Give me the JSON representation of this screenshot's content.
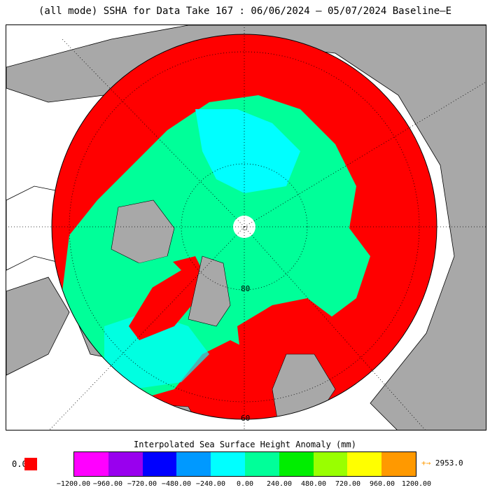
{
  "title": "(all mode) SSHA for Data Take 167 : 06/06/2024 — 05/07/2024 Baseline—E",
  "map": {
    "lat_labels": [
      "80",
      "60"
    ],
    "pole_marker": "□",
    "colors": {
      "land": "#a8a8a8",
      "ocean_outside": "#ffffff",
      "valid_data_red": "#ff0000",
      "sea_ice_dominant": "#00ff99",
      "pole_gap": "#ffffff"
    }
  },
  "colorbar": {
    "title": "Interpolated Sea Surface Height Anomaly (mm)",
    "tick_labels": [
      "−1200.00",
      "−960.00",
      "−720.00",
      "−480.00",
      "−240.00",
      "0.00",
      "240.00",
      "480.00",
      "720.00",
      "960.00",
      "1200.00"
    ],
    "colors": [
      "#ff00ff",
      "#9900ee",
      "#0000ff",
      "#0099ff",
      "#00ffff",
      "#00ff99",
      "#00ee00",
      "#99ff00",
      "#ffff00",
      "#ff9900"
    ],
    "zero_label": "0.0",
    "zero_color": "#ff0000",
    "over_arrow": "+→",
    "over_value": "2953.0"
  }
}
